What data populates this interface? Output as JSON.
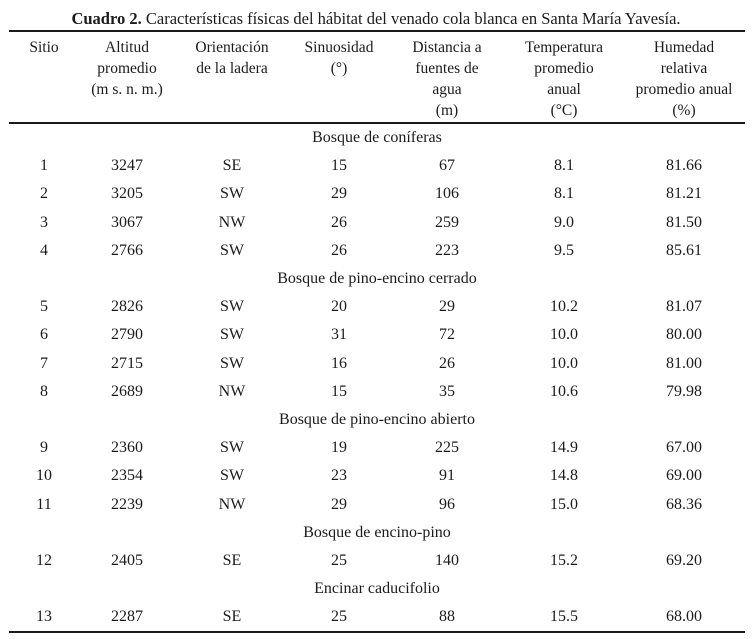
{
  "caption": {
    "label": "Cuadro 2.",
    "text": "Características físicas del hábitat del venado cola blanca en Santa María Yavesía."
  },
  "table": {
    "headers": [
      "Sitio",
      "Altitud\npromedio\n(m s. n. m.)",
      "Orientación\nde la ladera",
      "Sinuosidad\n(°)",
      "Distancia a\nfuentes de\nagua\n(m)",
      "Temperatura\npromedio\nanual\n(°C)",
      "Humedad\nrelativa\npromedio anual\n(%)"
    ],
    "sections": [
      {
        "title": "Bosque de coníferas",
        "rows": [
          [
            "1",
            "3247",
            "SE",
            "15",
            "67",
            "8.1",
            "81.66"
          ],
          [
            "2",
            "3205",
            "SW",
            "29",
            "106",
            "8.1",
            "81.21"
          ],
          [
            "3",
            "3067",
            "NW",
            "26",
            "259",
            "9.0",
            "81.50"
          ],
          [
            "4",
            "2766",
            "SW",
            "26",
            "223",
            "9.5",
            "85.61"
          ]
        ]
      },
      {
        "title": "Bosque de pino-encino cerrado",
        "rows": [
          [
            "5",
            "2826",
            "SW",
            "20",
            "29",
            "10.2",
            "81.07"
          ],
          [
            "6",
            "2790",
            "SW",
            "31",
            "72",
            "10.0",
            "80.00"
          ],
          [
            "7",
            "2715",
            "SW",
            "16",
            "26",
            "10.0",
            "81.00"
          ],
          [
            "8",
            "2689",
            "NW",
            "15",
            "35",
            "10.6",
            "79.98"
          ]
        ]
      },
      {
        "title": "Bosque de pino-encino abierto",
        "rows": [
          [
            "9",
            "2360",
            "SW",
            "19",
            "225",
            "14.9",
            "67.00"
          ],
          [
            "10",
            "2354",
            "SW",
            "23",
            "91",
            "14.8",
            "69.00"
          ],
          [
            "11",
            "2239",
            "NW",
            "29",
            "96",
            "15.0",
            "68.36"
          ]
        ]
      },
      {
        "title": "Bosque de encino-pino",
        "rows": [
          [
            "12",
            "2405",
            "SE",
            "25",
            "140",
            "15.2",
            "69.20"
          ]
        ]
      },
      {
        "title": "Encinar caducifolio",
        "rows": [
          [
            "13",
            "2287",
            "SE",
            "25",
            "88",
            "15.5",
            "68.00"
          ]
        ]
      }
    ]
  },
  "colors": {
    "text": "#1b1b1b",
    "rule": "#1a1a1a",
    "background": "#ffffff"
  }
}
